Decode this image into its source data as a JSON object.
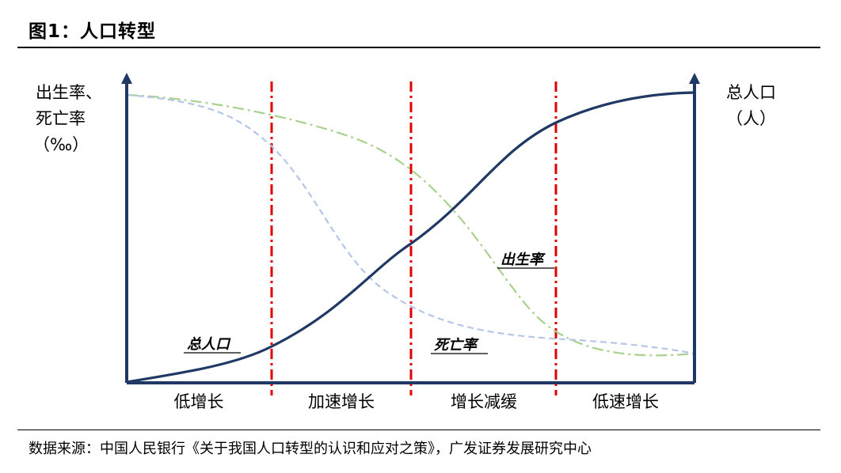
{
  "header": {
    "title": "图1：人口转型"
  },
  "diagram": {
    "left_axis_label": [
      "出生率、",
      "死亡率",
      "（‰）"
    ],
    "right_axis_label": [
      "总人口",
      "（人）"
    ],
    "stages": [
      "低增长",
      "加速增长",
      "增长减缓",
      "低速增长"
    ],
    "curve_labels": {
      "population": "总人口",
      "death_rate": "死亡率",
      "birth_rate": "出生率"
    },
    "colors": {
      "axes": "#1f3864",
      "population": "#1f3864",
      "birth_rate": "#a9d18e",
      "death_rate": "#b4c7e7",
      "divider": "#e00000"
    }
  },
  "footer": {
    "source": "数据来源：中国人民银行《关于我国人口转型的认识和应对之策》，广发证券发展研究中心"
  }
}
